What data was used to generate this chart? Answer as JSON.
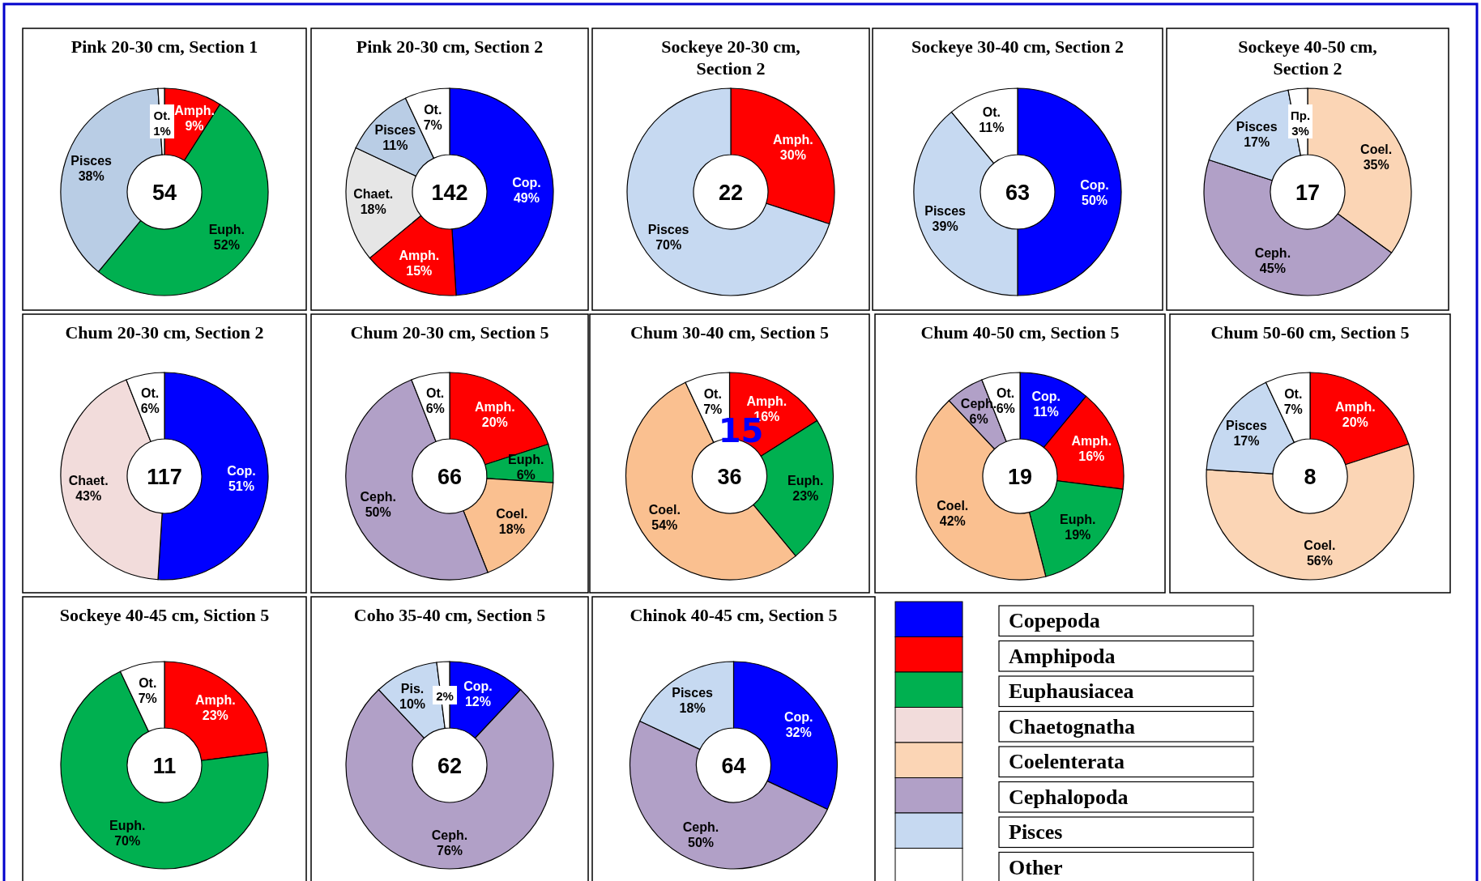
{
  "chart_data": [
    {
      "type": "donut",
      "title": "Pink 20-30 cm, Section 1",
      "categories": [
        "Amph.",
        "Euph.",
        "Pisces",
        "Ot."
      ],
      "values": [
        9,
        52,
        38,
        1
      ],
      "value_labels": [
        "9%",
        "52%",
        "38%",
        "1%"
      ],
      "colors": [
        "#ff0000",
        "#00b050",
        "#b9cde5",
        "#ffffff"
      ],
      "annotations": [
        "54"
      ]
    },
    {
      "type": "donut",
      "title": "Pink 20-30 cm, Section 2",
      "categories": [
        "Cop.",
        "Amph.",
        "Chaet.",
        "Pisces",
        "Ot."
      ],
      "values": [
        49,
        15,
        18,
        11,
        7
      ],
      "value_labels": [
        "49%",
        "15%",
        "18%",
        "11%",
        "7%"
      ],
      "colors": [
        "#0000ff",
        "#ff0000",
        "#e6e6e6",
        "#b9cde5",
        "#ffffff"
      ],
      "annotations": [
        "142"
      ]
    },
    {
      "type": "donut",
      "title": "Sockeye 20-30 cm, Section 2",
      "categories": [
        "Amph.",
        "Pisces"
      ],
      "values": [
        30,
        70
      ],
      "value_labels": [
        "30%",
        "70%"
      ],
      "colors": [
        "#ff0000",
        "#c6d9f1"
      ],
      "annotations": [
        "22"
      ]
    },
    {
      "type": "donut",
      "title": "Sockeye 30-40 cm, Section 2",
      "categories": [
        "Cop.",
        "Pisces",
        "Ot."
      ],
      "values": [
        50,
        39,
        11
      ],
      "value_labels": [
        "50%",
        "39%",
        "11%"
      ],
      "colors": [
        "#0000ff",
        "#c6d9f1",
        "#ffffff"
      ],
      "annotations": [
        "63"
      ]
    },
    {
      "type": "donut",
      "title": "Sockeye 40-50 cm, Section 2",
      "categories": [
        "Coel.",
        "Ceph.",
        "Pisces",
        "Пр."
      ],
      "values": [
        35,
        45,
        17,
        3
      ],
      "value_labels": [
        "35%",
        "45%",
        "17%",
        "3%"
      ],
      "colors": [
        "#fbd5b5",
        "#b1a0c7",
        "#c6d9f1",
        "#ffffff"
      ],
      "annotations": [
        "17"
      ]
    },
    {
      "type": "donut",
      "title": "Chum 20-30 cm, Section 2",
      "categories": [
        "Cop.",
        "Chaet.",
        "Ot."
      ],
      "values": [
        51,
        43,
        6
      ],
      "value_labels": [
        "51%",
        "43%",
        "6%"
      ],
      "colors": [
        "#0000ff",
        "#f2dcdb",
        "#ffffff"
      ],
      "annotations": [
        "117"
      ]
    },
    {
      "type": "donut",
      "title": "Chum 20-30 cm, Section 5",
      "categories": [
        "Amph.",
        "Euph.",
        "Coel.",
        "Ceph.",
        "Ot."
      ],
      "values": [
        20,
        6,
        18,
        50,
        6
      ],
      "value_labels": [
        "20%",
        "6%",
        "18%",
        "50%",
        "6%"
      ],
      "colors": [
        "#ff0000",
        "#00b050",
        "#fac090",
        "#b1a0c7",
        "#ffffff"
      ],
      "annotations": [
        "66"
      ]
    },
    {
      "type": "donut",
      "title": "Chum 30-40 cm, Section 5",
      "categories": [
        "Amph.",
        "Euph.",
        "Coel.",
        "Ot."
      ],
      "values": [
        16,
        23,
        54,
        7
      ],
      "value_labels": [
        "16%",
        "23%",
        "54%",
        "7%"
      ],
      "colors": [
        "#ff0000",
        "#00b050",
        "#fac090",
        "#ffffff"
      ],
      "annotations": [
        "36",
        "15"
      ]
    },
    {
      "type": "donut",
      "title": "Chum 40-50 cm, Section 5",
      "categories": [
        "Cop.",
        "Amph.",
        "Euph.",
        "Coel.",
        "Ceph.",
        "Ot."
      ],
      "values": [
        11,
        16,
        19,
        42,
        6,
        6
      ],
      "value_labels": [
        "11%",
        "16%",
        "19%",
        "42%",
        "6%",
        "6%"
      ],
      "colors": [
        "#0000ff",
        "#ff0000",
        "#00b050",
        "#fac090",
        "#b1a0c7",
        "#ffffff"
      ],
      "annotations": [
        "19"
      ]
    },
    {
      "type": "donut",
      "title": "Chum 50-60 cm, Section 5",
      "categories": [
        "Amph.",
        "Coel.",
        "Pisces",
        "Ot."
      ],
      "values": [
        20,
        56,
        17,
        7
      ],
      "value_labels": [
        "20%",
        "56%",
        "17%",
        "7%"
      ],
      "colors": [
        "#ff0000",
        "#fbd5b5",
        "#c6d9f1",
        "#ffffff"
      ],
      "annotations": [
        "8"
      ]
    },
    {
      "type": "donut",
      "title": "Sockeye 40-45 cm, Siction 5",
      "categories": [
        "Amph.",
        "Euph.",
        "Ot."
      ],
      "values": [
        23,
        70,
        7
      ],
      "value_labels": [
        "23%",
        "70%",
        "7%"
      ],
      "colors": [
        "#ff0000",
        "#00b050",
        "#ffffff"
      ],
      "annotations": [
        "11"
      ]
    },
    {
      "type": "donut",
      "title": "Coho 35-40 cm, Section 5",
      "categories": [
        "Cop.",
        "Ceph.",
        "Pis.",
        null
      ],
      "values": [
        12,
        76,
        10,
        2
      ],
      "value_labels": [
        "12%",
        "76%",
        "10%",
        "2%"
      ],
      "colors": [
        "#0000ff",
        "#b1a0c7",
        "#c6d9f1",
        "#ffffff"
      ],
      "annotations": [
        "62"
      ]
    },
    {
      "type": "donut",
      "title": "Chinok 40-45 cm, Section 5",
      "categories": [
        "Cop.",
        "Ceph.",
        "Pisces"
      ],
      "values": [
        32,
        50,
        18
      ],
      "value_labels": [
        "32%",
        "50%",
        "18%"
      ],
      "colors": [
        "#0000ff",
        "#b1a0c7",
        "#c6d9f1"
      ],
      "annotations": [
        "64"
      ]
    },
    {
      "type": "other",
      "categories": [
        "Copepoda",
        "Amphipoda",
        "Euphausiacea",
        "Chaetognatha",
        "Coelenterata",
        "Cephalopoda",
        "Pisces",
        "Other"
      ],
      "colors": [
        "#0000ff",
        "#ff0000",
        "#00b050",
        "#f2dcdb",
        "#fbd5b5",
        "#b1a0c7",
        "#c6d9f1",
        "#ffffff"
      ]
    }
  ]
}
